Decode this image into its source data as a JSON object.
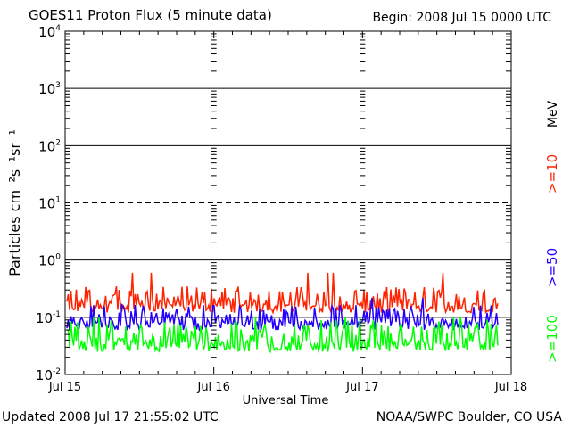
{
  "title": "GOES11 Proton Flux (5 minute data)",
  "begin_label": "Begin: 2008 Jul 15 0000 UTC",
  "updated_label": "Updated 2008 Jul 17 21:55:02 UTC",
  "credit_label": "NOAA/SWPC Boulder, CO USA",
  "chart_data": {
    "type": "line",
    "title": "GOES11 Proton Flux (5 minute data)",
    "xlabel": "Universal Time",
    "ylabel": "Particles cm⁻²s⁻¹sr⁻¹",
    "yscale": "log",
    "ylim": [
      0.01,
      10000
    ],
    "xlim": [
      "2008-07-15",
      "2008-07-18"
    ],
    "x_ticks": [
      "Jul 15",
      "Jul 16",
      "Jul 17",
      "Jul 18"
    ],
    "y_ticks": [
      {
        "base": "10",
        "exp": "-2"
      },
      {
        "base": "10",
        "exp": "-1"
      },
      {
        "base": "10",
        "exp": "0"
      },
      {
        "base": "10",
        "exp": "1"
      },
      {
        "base": "10",
        "exp": "2"
      },
      {
        "base": "10",
        "exp": "3"
      },
      {
        "base": "10",
        "exp": "4"
      }
    ],
    "grid": true,
    "dashed_threshold": 10,
    "legend_unit": "MeV",
    "legend_placement": "right",
    "series": [
      {
        "name": ">=10",
        "color": "#ff2200",
        "typical_low": 0.12,
        "typical_high": 0.35,
        "peak": 0.6
      },
      {
        "name": ">=50",
        "color": "#2200ff",
        "typical_low": 0.06,
        "typical_high": 0.17,
        "peak": 0.22
      },
      {
        "name": ">=100",
        "color": "#00ff00",
        "typical_low": 0.025,
        "typical_high": 0.09,
        "peak": 0.1
      }
    ],
    "data_end": "2008-07-17 21:55"
  }
}
